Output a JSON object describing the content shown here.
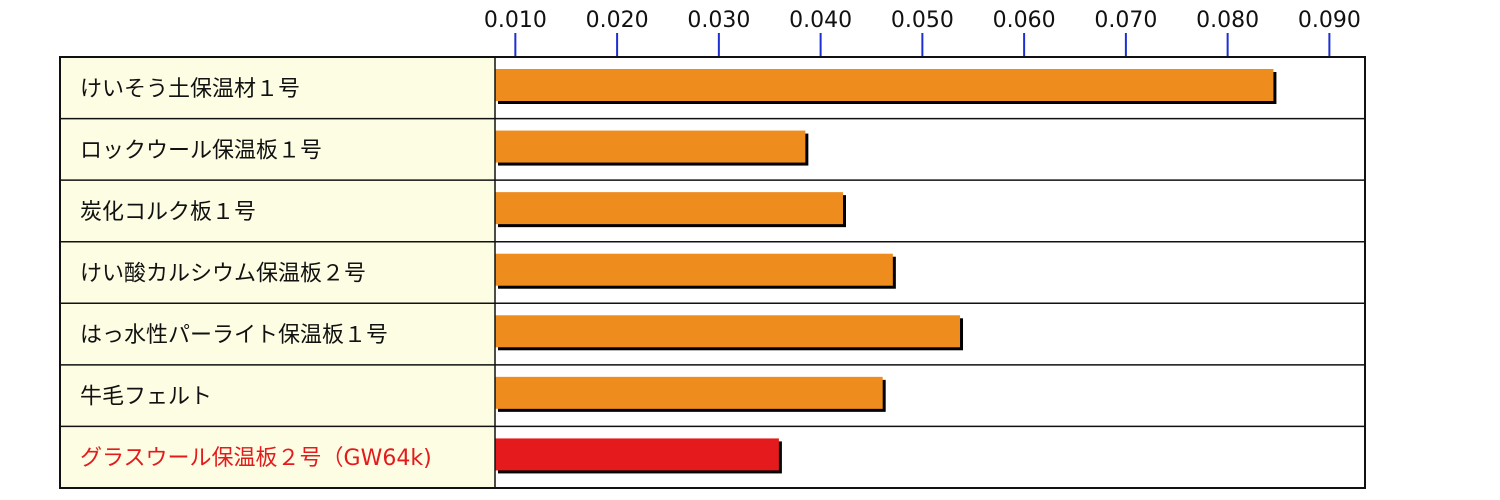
{
  "colors": {
    "label_bg": "#fdfde4",
    "plot_bg": "#ffffff",
    "border": "#111111",
    "tick": "#1d2fd0",
    "bar_default": "#ee8c1e",
    "bar_highlight": "#e41a1c",
    "label_text": "#111111",
    "label_highlight_text": "#e41a1c",
    "bar_shadow": "#000000"
  },
  "chart_data": {
    "type": "bar",
    "orientation": "horizontal",
    "x_axis_position": "top",
    "xlim": [
      0.008,
      0.0935
    ],
    "ticks": [
      0.01,
      0.02,
      0.03,
      0.04,
      0.05,
      0.06,
      0.07,
      0.08,
      0.09
    ],
    "tick_labels": [
      "0.010",
      "0.020",
      "0.030",
      "0.040",
      "0.050",
      "0.060",
      "0.070",
      "0.080",
      "0.090"
    ],
    "categories": [
      "けいそう土保温材１号",
      "ロックウール保温板１号",
      "炭化コルク板１号",
      "けい酸カルシウム保温板２号",
      "はっ水性パーライト保温板１号",
      "牛毛フェルト",
      "グラスウール保温板２号（GW64k)"
    ],
    "values": [
      0.0845,
      0.0385,
      0.0422,
      0.0471,
      0.0537,
      0.0461,
      0.0359
    ],
    "highlight": [
      false,
      false,
      false,
      false,
      false,
      false,
      true
    ]
  }
}
